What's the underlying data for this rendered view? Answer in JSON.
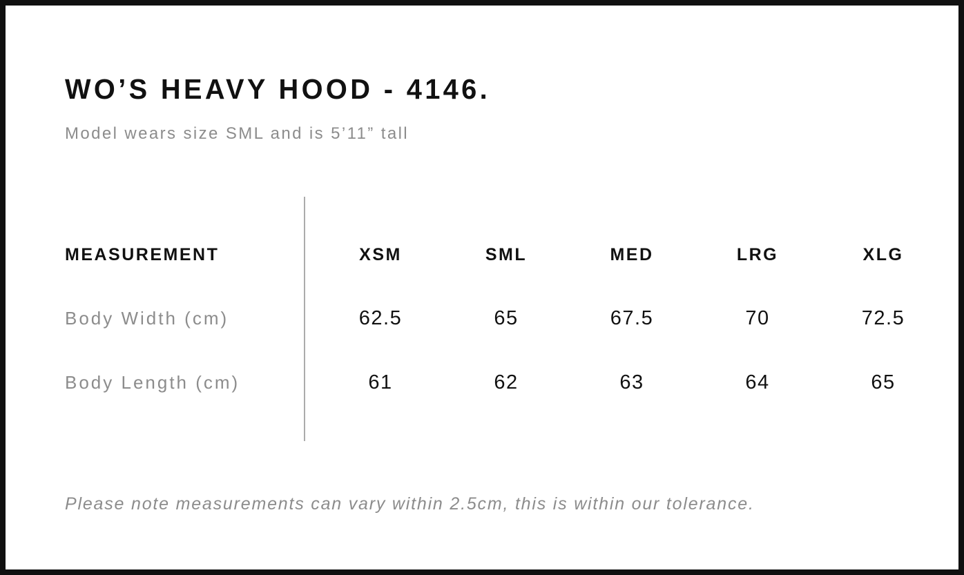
{
  "header": {
    "title": "WO’S HEAVY HOOD - 4146.",
    "subtitle": "Model wears size SML and is 5’11” tall"
  },
  "table": {
    "measurement_header": "MEASUREMENT",
    "size_headers": [
      "XSM",
      "SML",
      "MED",
      "LRG",
      "XLG"
    ],
    "rows": [
      {
        "label": "Body Width (cm)",
        "values": [
          "62.5",
          "65",
          "67.5",
          "70",
          "72.5"
        ]
      },
      {
        "label": "Body Length (cm)",
        "values": [
          "61",
          "62",
          "63",
          "64",
          "65"
        ]
      }
    ]
  },
  "footer": {
    "note": "Please note measurements can vary within 2.5cm, this is within our tolerance."
  },
  "colors": {
    "text_primary": "#111111",
    "text_secondary": "#8c8c8c",
    "divider": "#ababab",
    "border": "#101010",
    "background": "#ffffff"
  }
}
